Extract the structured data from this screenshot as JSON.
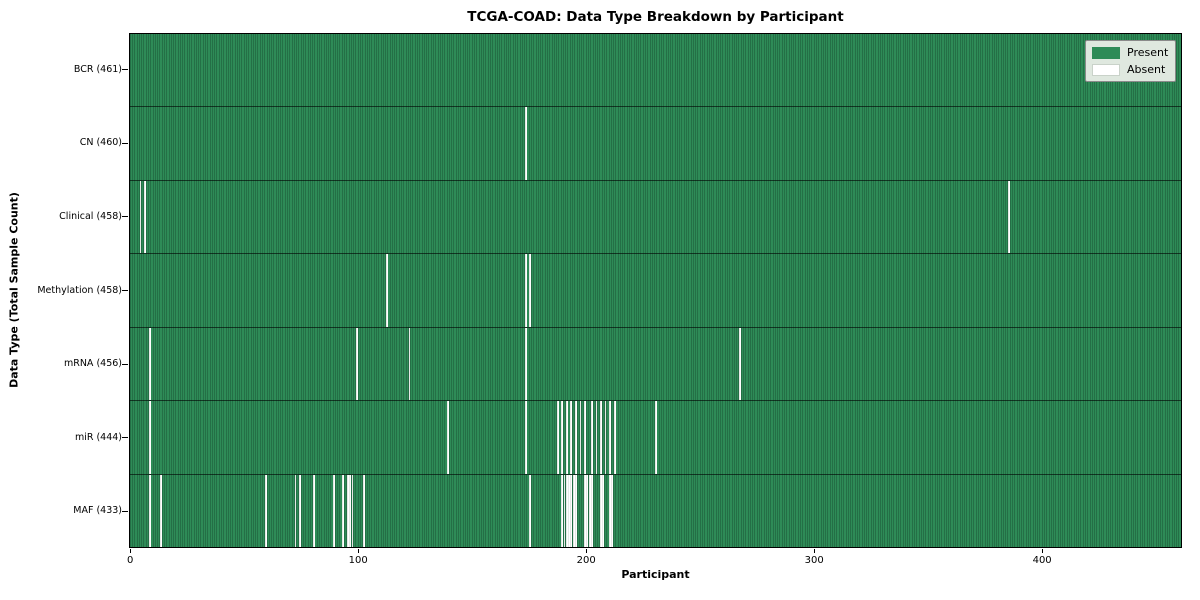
{
  "colors": {
    "present": "#2e8b57",
    "absent": "#ffffff",
    "legend_background": "#dfe8df",
    "tick_and_border": "#000000"
  },
  "chart_data": {
    "type": "heatmap",
    "title": "TCGA-COAD: Data Type Breakdown by Participant",
    "xlabel": "Participant",
    "ylabel": "Data Type (Total Sample Count)",
    "n_participants": 461,
    "xlim": [
      0,
      461
    ],
    "x_ticks": [
      0,
      100,
      200,
      300,
      400
    ],
    "x_tick_labels": [
      "0",
      "100",
      "200",
      "300",
      "400"
    ],
    "grid": "per-cell vertical edges, dark row separators",
    "legend_position": "upper right",
    "legend": [
      {
        "label": "Present",
        "color": "#2e8b57"
      },
      {
        "label": "Absent",
        "color": "#ffffff"
      }
    ],
    "rows": [
      {
        "name": "BCR",
        "label": "BCR (461)",
        "count": 461,
        "absent_participants": []
      },
      {
        "name": "CN",
        "label": "CN (460)",
        "count": 460,
        "absent_participants": [
          173
        ]
      },
      {
        "name": "Clinical",
        "label": "Clinical (458)",
        "count": 458,
        "absent_participants": [
          4,
          6,
          385
        ]
      },
      {
        "name": "Methylation",
        "label": "Methylation (458)",
        "count": 458,
        "absent_participants": [
          112,
          173,
          175
        ]
      },
      {
        "name": "mRNA",
        "label": "mRNA (456)",
        "count": 456,
        "absent_participants": [
          8,
          99,
          122,
          173,
          267
        ]
      },
      {
        "name": "miR",
        "label": "miR (444)",
        "count": 444,
        "absent_participants": [
          8,
          139,
          173,
          187,
          189,
          191,
          193,
          195,
          197,
          199,
          202,
          204,
          206,
          208,
          210,
          212,
          230
        ]
      },
      {
        "name": "MAF",
        "label": "MAF (433)",
        "count": 433,
        "absent_participants": [
          8,
          13,
          59,
          72,
          74,
          80,
          89,
          93,
          95,
          96,
          97,
          102,
          175,
          189,
          190,
          191,
          192,
          193,
          194,
          195,
          199,
          200,
          201,
          202,
          206,
          207,
          210,
          211
        ]
      }
    ]
  }
}
